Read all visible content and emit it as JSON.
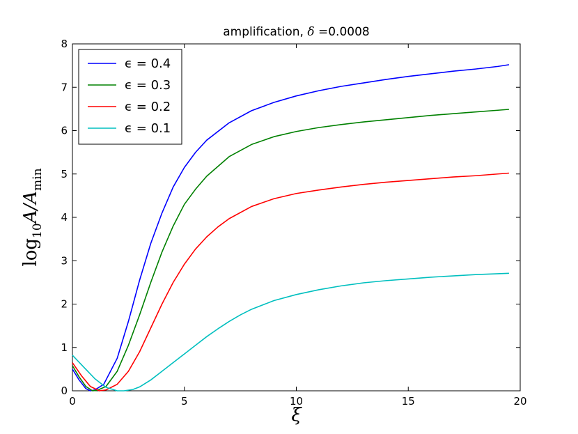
{
  "chart_data": {
    "type": "line",
    "title_prefix": "amplification, ",
    "title_symbol": "δ",
    "title_suffix": " =0.0008",
    "xlabel": "ξ",
    "ylabel_main": "log",
    "ylabel_sub": "10",
    "ylabel_var": "A/A",
    "ylabel_var_sub": "min",
    "xlim": [
      0,
      20
    ],
    "ylim": [
      0,
      8
    ],
    "xticks": [
      0,
      5,
      10,
      15,
      20
    ],
    "yticks": [
      0,
      1,
      2,
      3,
      4,
      5,
      6,
      7,
      8
    ],
    "grid": false,
    "legend_position": "top-left",
    "series": [
      {
        "name": "ϵ = 0.4",
        "color": "#0000ff",
        "x": [
          0,
          0.3,
          0.6,
          0.8,
          1.0,
          1.4,
          2,
          2.5,
          3,
          3.5,
          4,
          4.5,
          5,
          5.5,
          6,
          7,
          8,
          9,
          10,
          11,
          12,
          13,
          14,
          15,
          16,
          17,
          18,
          19,
          19.5
        ],
        "y": [
          0.5,
          0.25,
          0.05,
          0.0,
          0.02,
          0.15,
          0.75,
          1.6,
          2.55,
          3.4,
          4.1,
          4.7,
          5.15,
          5.5,
          5.78,
          6.18,
          6.46,
          6.65,
          6.8,
          6.92,
          7.02,
          7.1,
          7.18,
          7.25,
          7.31,
          7.37,
          7.42,
          7.48,
          7.52
        ]
      },
      {
        "name": "ϵ = 0.3",
        "color": "#008000",
        "x": [
          0,
          0.3,
          0.6,
          0.9,
          1.1,
          1.5,
          2,
          2.5,
          3,
          3.5,
          4,
          4.5,
          5,
          5.5,
          6,
          7,
          8,
          9,
          10,
          11,
          12,
          13,
          14,
          15,
          16,
          17,
          18,
          19,
          19.5
        ],
        "y": [
          0.58,
          0.32,
          0.1,
          0.0,
          0.01,
          0.1,
          0.45,
          1.05,
          1.75,
          2.5,
          3.2,
          3.8,
          4.3,
          4.65,
          4.95,
          5.4,
          5.68,
          5.86,
          5.98,
          6.07,
          6.14,
          6.2,
          6.25,
          6.3,
          6.35,
          6.39,
          6.43,
          6.47,
          6.49
        ]
      },
      {
        "name": "ϵ = 0.2",
        "color": "#ff0000",
        "x": [
          0,
          0.4,
          0.8,
          1.2,
          1.5,
          2,
          2.5,
          3,
          3.5,
          4,
          4.5,
          5,
          5.5,
          6,
          6.5,
          7,
          8,
          9,
          10,
          11,
          12,
          13,
          14,
          15,
          16,
          17,
          18,
          19,
          19.5
        ],
        "y": [
          0.65,
          0.35,
          0.1,
          0.0,
          0.02,
          0.15,
          0.45,
          0.9,
          1.45,
          2.0,
          2.5,
          2.92,
          3.27,
          3.55,
          3.78,
          3.97,
          4.25,
          4.43,
          4.55,
          4.63,
          4.7,
          4.76,
          4.81,
          4.85,
          4.89,
          4.93,
          4.96,
          5.0,
          5.02
        ]
      },
      {
        "name": "ϵ = 0.1",
        "color": "#00bfbf",
        "x": [
          0,
          0.5,
          1.0,
          1.5,
          2.0,
          2.3,
          2.7,
          3,
          3.5,
          4,
          4.5,
          5,
          5.5,
          6,
          6.5,
          7,
          7.5,
          8,
          9,
          10,
          11,
          12,
          13,
          14,
          15,
          16,
          17,
          18,
          19,
          19.5
        ],
        "y": [
          0.82,
          0.55,
          0.28,
          0.08,
          0.0,
          0.0,
          0.03,
          0.09,
          0.25,
          0.45,
          0.65,
          0.85,
          1.05,
          1.25,
          1.43,
          1.6,
          1.75,
          1.88,
          2.08,
          2.22,
          2.33,
          2.42,
          2.49,
          2.54,
          2.58,
          2.62,
          2.65,
          2.68,
          2.7,
          2.71
        ]
      }
    ]
  }
}
